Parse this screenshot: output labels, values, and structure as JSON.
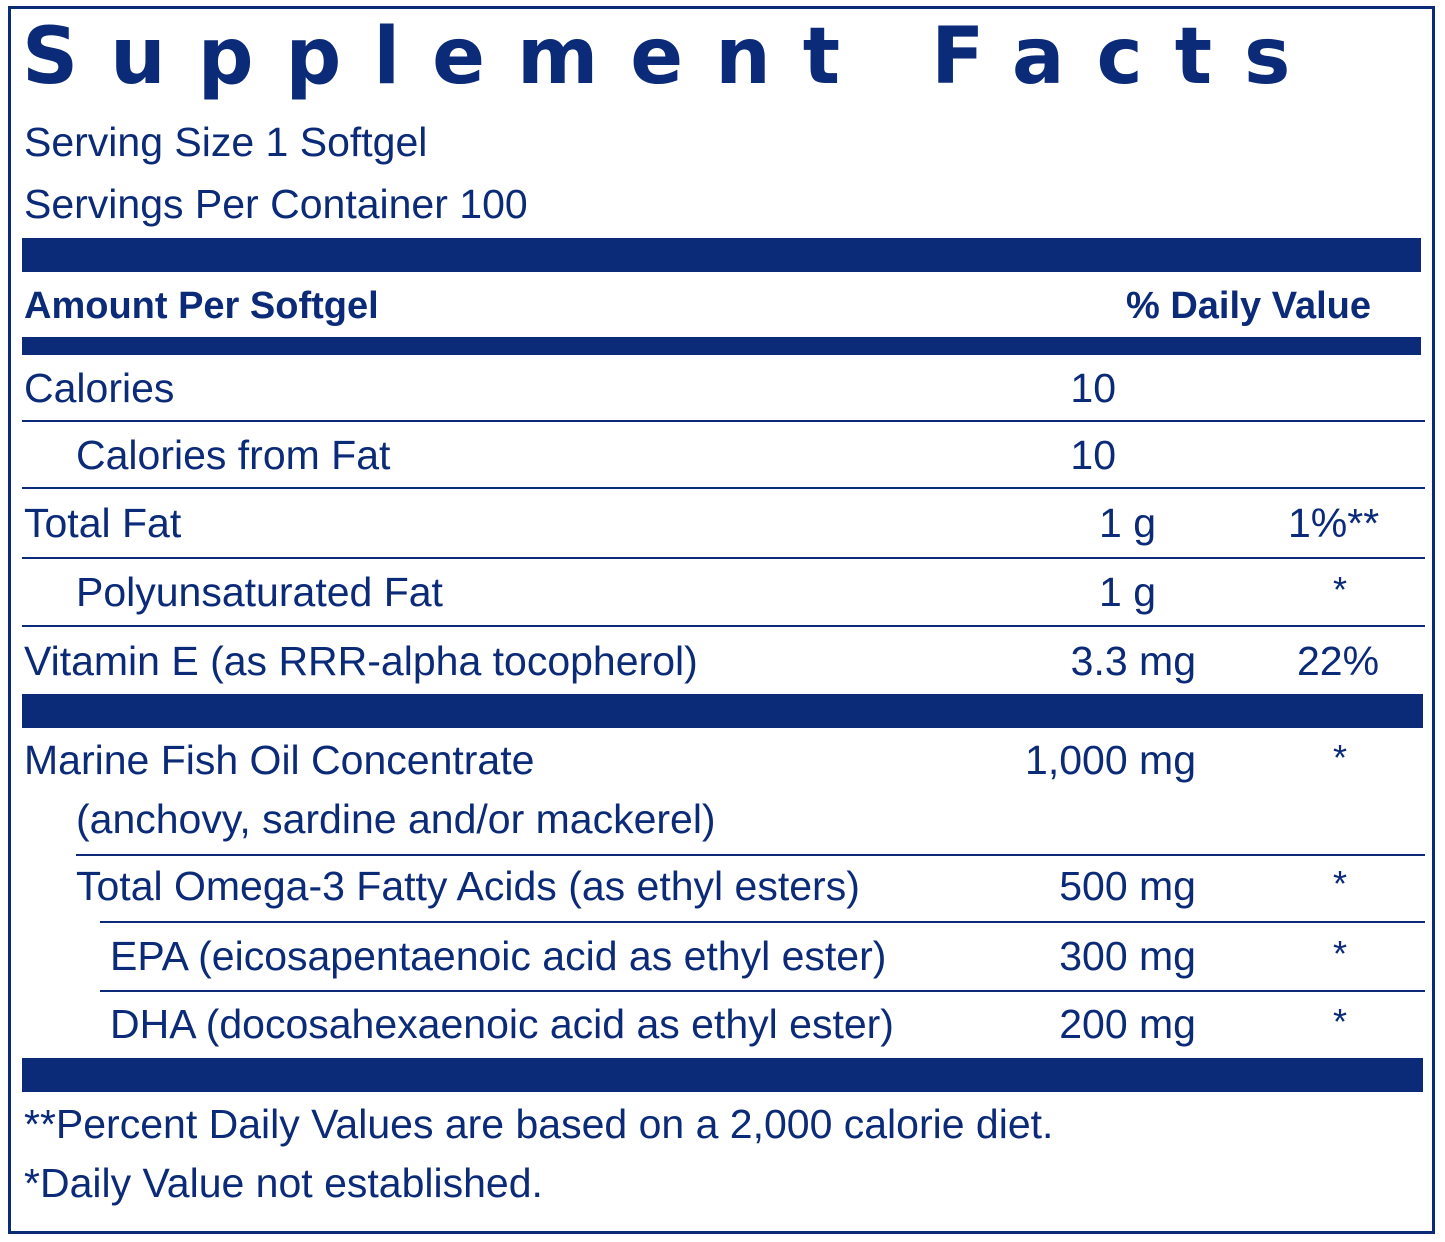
{
  "title": "Supplement Facts",
  "serving_size": "Serving Size 1 Softgel",
  "servings_per_container": "Servings Per Container 100",
  "header": {
    "amount_label": "Amount Per Softgel",
    "dv_label": "% Daily Value"
  },
  "rows": [
    {
      "name": "Calories",
      "amount": "10",
      "dv": ""
    },
    {
      "name": "Calories from Fat",
      "amount": "10",
      "dv": ""
    },
    {
      "name": "Total Fat",
      "amount": "1 g",
      "dv": "1%**"
    },
    {
      "name": "Polyunsaturated Fat",
      "amount": "1 g",
      "dv": "*"
    },
    {
      "name": "Vitamin E (as RRR-alpha tocopherol)",
      "amount": "3.3 mg",
      "dv": "22%"
    },
    {
      "name": "Marine Fish Oil Concentrate",
      "name_line2": "(anchovy, sardine and/or mackerel)",
      "amount": "1,000 mg",
      "dv": "*"
    },
    {
      "name": "Total Omega-3 Fatty Acids (as ethyl esters)",
      "amount": "500 mg",
      "dv": "*"
    },
    {
      "name": "EPA (eicosapentaenoic acid as ethyl ester)",
      "amount": "300 mg",
      "dv": "*"
    },
    {
      "name": "DHA (docosahexaenoic acid as ethyl ester)",
      "amount": "200 mg",
      "dv": "*"
    }
  ],
  "footnotes": {
    "percent_dv": "**Percent Daily Values are based on a 2,000 calorie diet.",
    "not_established": "*Daily Value not established."
  },
  "colors": {
    "ink": "#0b2a78",
    "background": "#ffffff"
  }
}
